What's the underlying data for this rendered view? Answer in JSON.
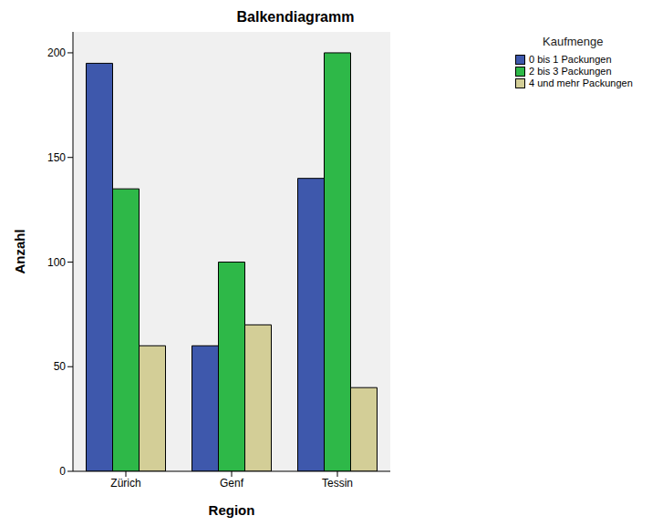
{
  "chart_data": {
    "type": "bar",
    "title": "Balkendiagramm",
    "x_label": "Region",
    "y_label": "Anzahl",
    "legend_title": "Kaufmenge",
    "categories": [
      "Zürich",
      "Genf",
      "Tessin"
    ],
    "series": [
      {
        "name": "0 bis 1 Packungen",
        "color": "#3e58ac",
        "values": [
          195,
          60,
          140
        ]
      },
      {
        "name": "2 bis 3 Packungen",
        "color": "#2eb848",
        "values": [
          135,
          100,
          200
        ]
      },
      {
        "name": "4 und mehr Packungen",
        "color": "#d3ce97",
        "values": [
          60,
          70,
          40
        ]
      }
    ],
    "ylim": [
      0,
      210
    ],
    "yticks": [
      0,
      50,
      100,
      150,
      200
    ],
    "grid": false,
    "legend": "right"
  }
}
